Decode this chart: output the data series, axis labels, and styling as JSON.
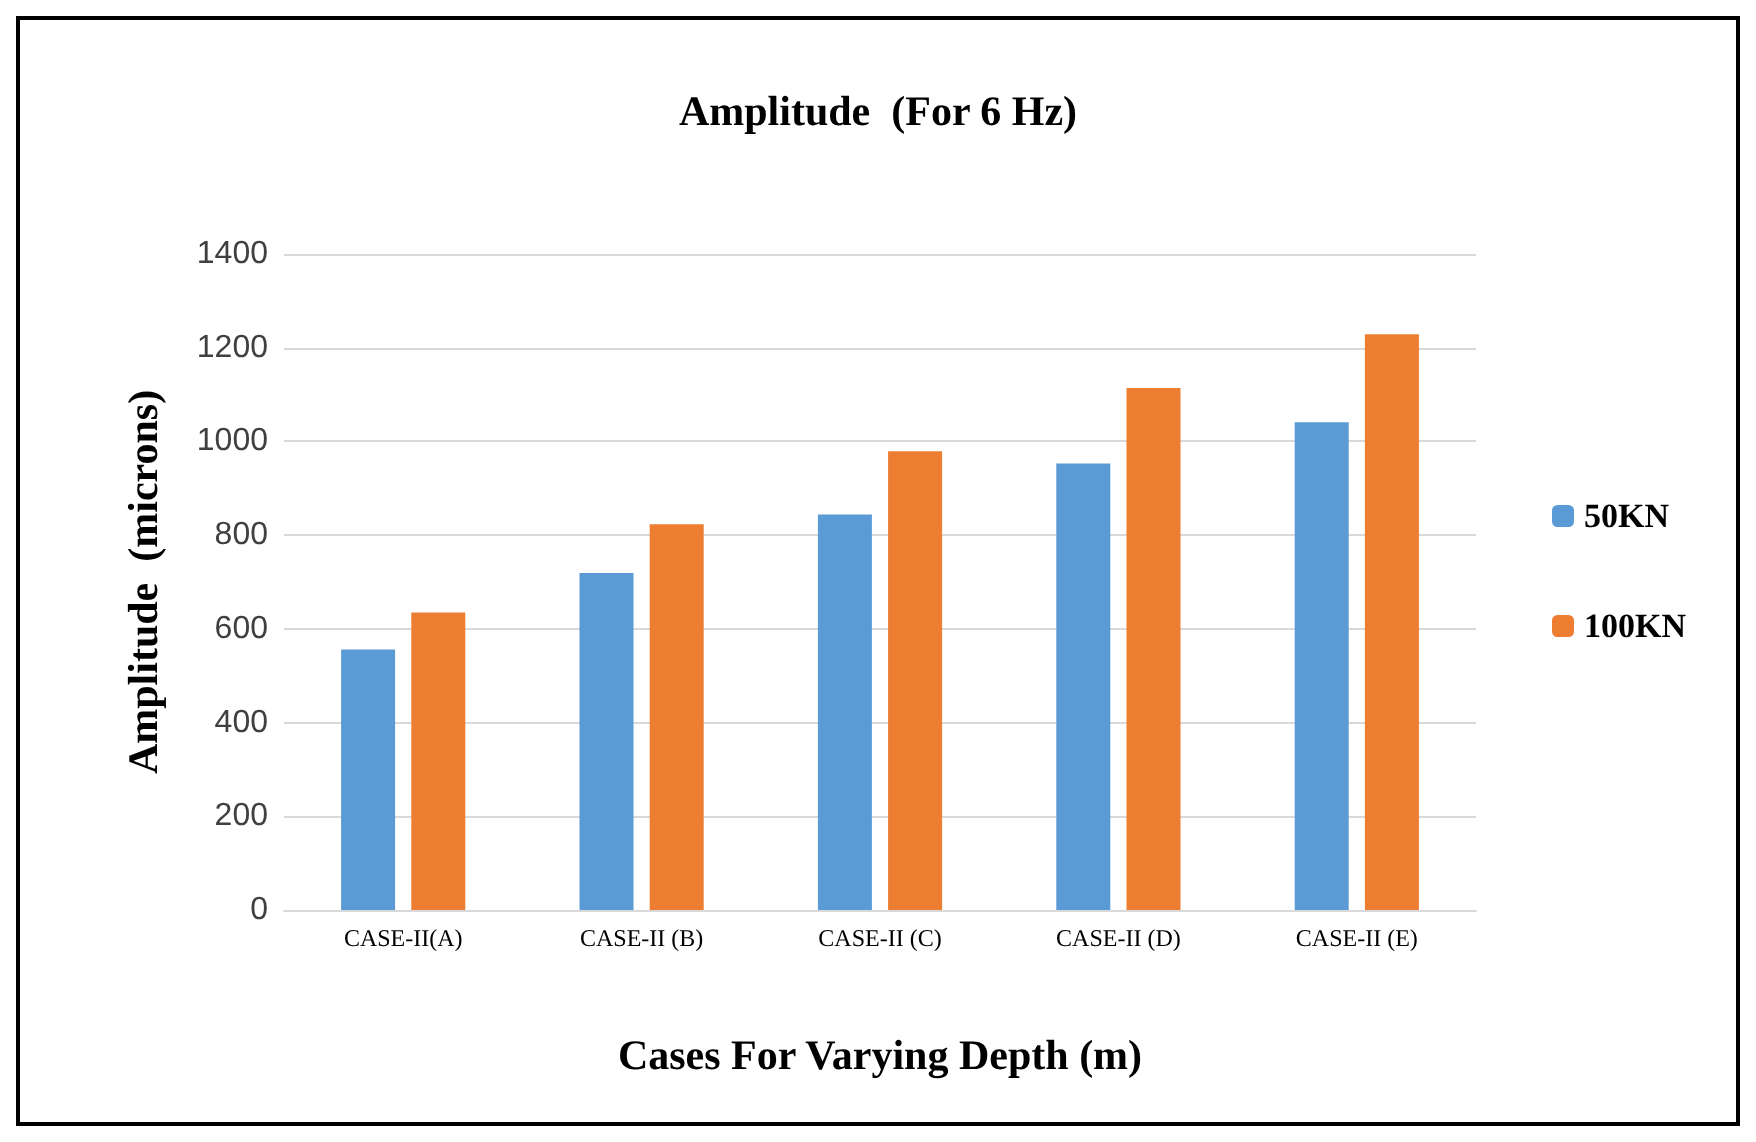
{
  "chart_data": {
    "type": "bar",
    "title": "Amplitude  (For 6 Hz)",
    "xlabel": "Cases For Varying Depth (m)",
    "ylabel": "Amplitude  (microns)",
    "categories": [
      "CASE-II(A)",
      "CASE-II (B)",
      "CASE-II (C)",
      "CASE-II (D)",
      "CASE-II (E)"
    ],
    "series": [
      {
        "name": "50KN",
        "color": "#5b9bd5",
        "values": [
          556,
          719,
          844,
          953,
          1041
        ]
      },
      {
        "name": "100KN",
        "color": "#ed7d31",
        "values": [
          635,
          823,
          979,
          1114,
          1229
        ]
      }
    ],
    "ylim": [
      0,
      1400
    ],
    "yticks": [
      0,
      200,
      400,
      600,
      800,
      1000,
      1200,
      1400
    ],
    "grid": "y",
    "legend": "right"
  }
}
